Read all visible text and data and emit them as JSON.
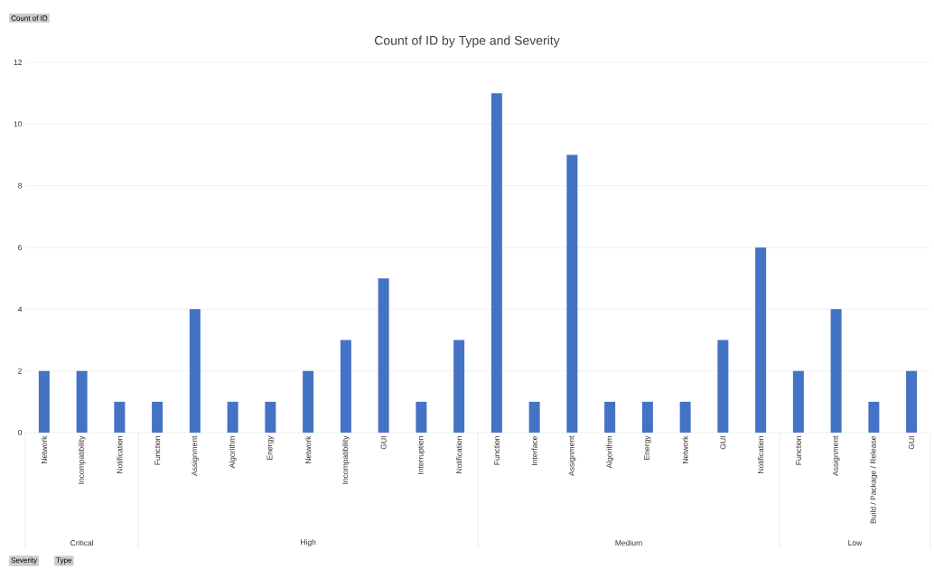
{
  "chart_data": [
    {
      "type": "other",
      "title": "Count of ID by Type and Severity",
      "annotations": [
        "Count of ID",
        "Severity",
        "Type"
      ]
    },
    {
      "type": "bar",
      "xlabel": "Critical",
      "categories": [
        "Network",
        "Incompatibility",
        "Notification"
      ],
      "values": [
        2,
        2,
        1
      ],
      "color": "#4472c4",
      "ylim": [
        0,
        12
      ],
      "yticks": [
        0,
        2,
        4,
        6,
        8,
        10,
        12
      ],
      "grid": "y"
    },
    {
      "type": "bar",
      "xlabel": "High",
      "categories": [
        "Function",
        "Assignment",
        "Algorithm",
        "Energy",
        "Network",
        "Incompatibility",
        "GUI",
        "Interruption",
        "Notification"
      ],
      "values": [
        1,
        4,
        1,
        1,
        2,
        3,
        5,
        1,
        3
      ],
      "color": "#4472c4",
      "ylim": [
        0,
        12
      ],
      "yticks": [
        0,
        2,
        4,
        6,
        8,
        10,
        12
      ],
      "grid": "y",
      "tick_labels": "x"
    },
    {
      "type": "bar",
      "xlabel": "Medium",
      "categories": [
        "Function",
        "Interface",
        "Assignment",
        "Algorithm",
        "Energy",
        "Network",
        "GUI",
        "Notification"
      ],
      "values": [
        11,
        1,
        9,
        1,
        1,
        1,
        3,
        6
      ],
      "color": "#4472c4",
      "ylim": [
        0,
        12
      ],
      "yticks": [
        0,
        2,
        4,
        6,
        8,
        10,
        12
      ],
      "grid": "y",
      "tick_labels": "x"
    },
    {
      "type": "bar",
      "xlabel": "Low",
      "categories": [
        "Function",
        "Assignment",
        "Build / Package / Release",
        "GUI"
      ],
      "values": [
        2,
        4,
        1,
        2
      ],
      "color": "#4472c4",
      "ylim": [
        0,
        12
      ],
      "yticks": [
        0,
        2,
        4,
        6,
        8,
        10,
        12
      ],
      "grid": "y",
      "tick_labels": "x"
    }
  ]
}
